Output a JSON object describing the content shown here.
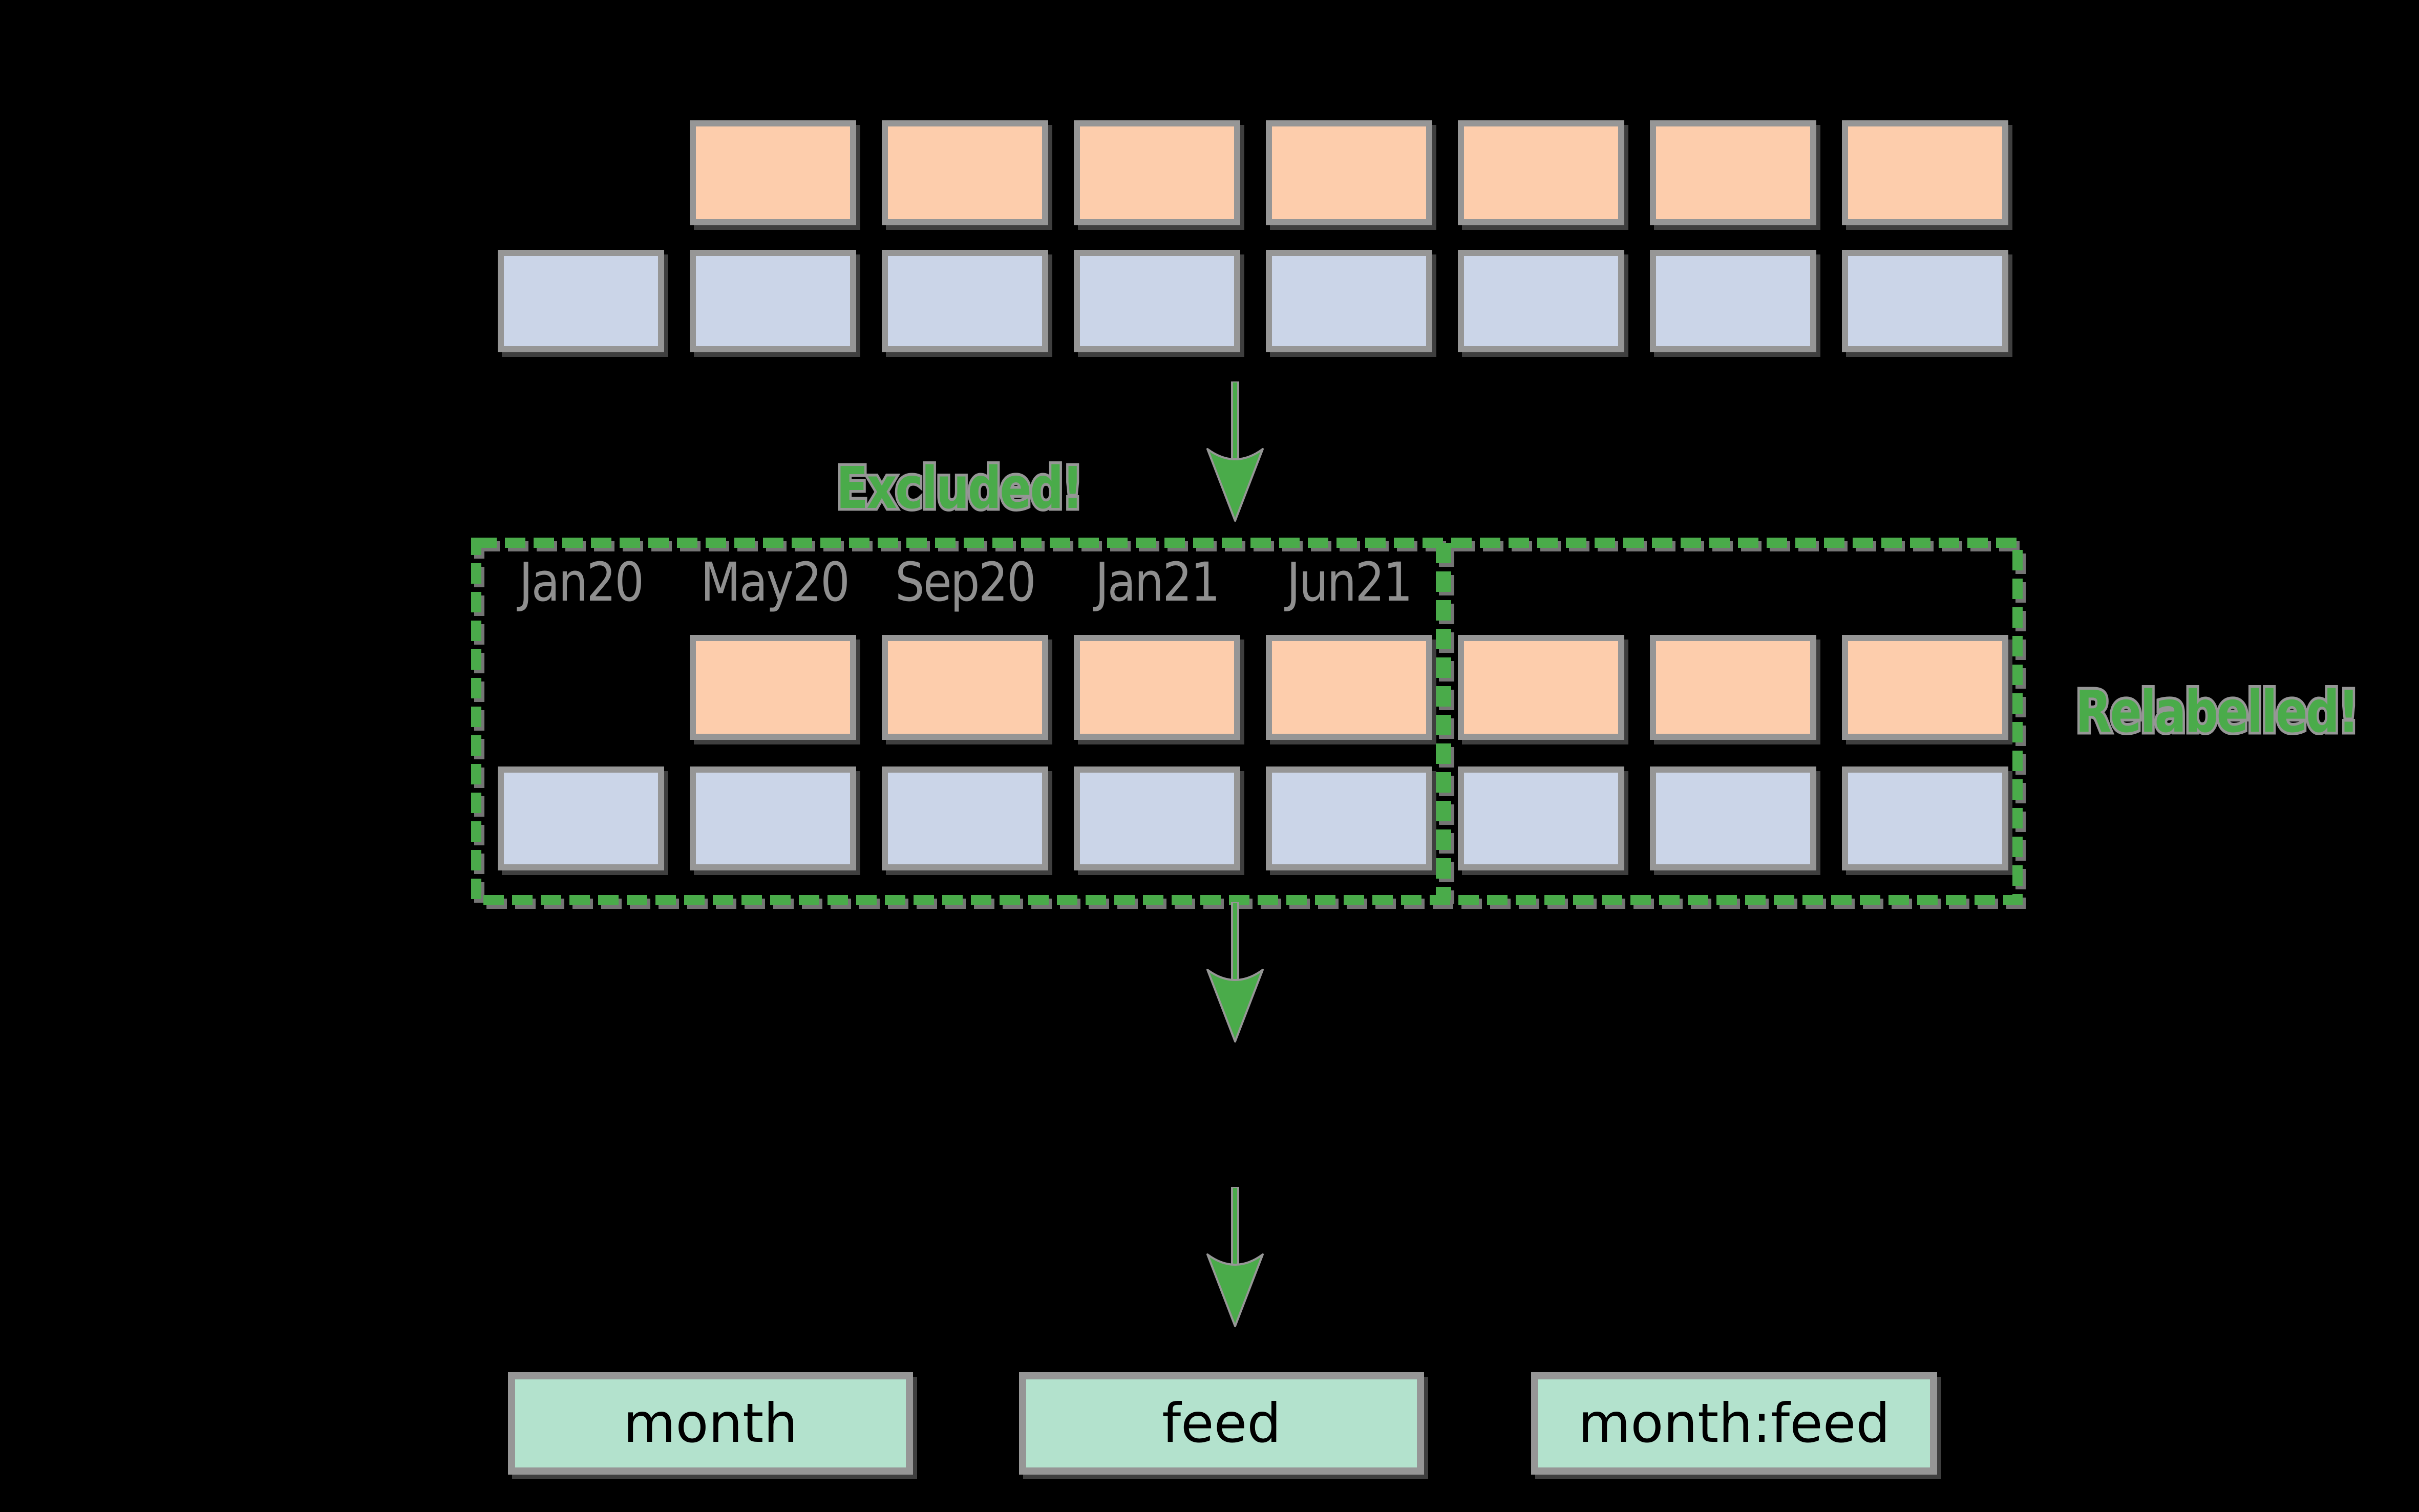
{
  "colors": {
    "background": "#000000",
    "peach_cell": "#fdcdac",
    "blue_cell": "#cbd5e8",
    "mint_box": "#b3e2cd",
    "annotation_green": "#4aab4a",
    "border_gray": "#969696",
    "tick_label_gray": "#8f8f8f"
  },
  "top_grid": {
    "peach_cells": 7,
    "blue_cells": 8
  },
  "timeline_box": {
    "month_labels": [
      "Jan20",
      "May20",
      "Sep20",
      "Jan21",
      "Jun21"
    ],
    "peach_cells": 7,
    "blue_cells": 8,
    "excluded_label": "Excluded!",
    "relabelled_label": "Relabelled!"
  },
  "arrows": {
    "count": 3,
    "direction": "down"
  },
  "output_boxes": [
    {
      "label": "month"
    },
    {
      "label": "feed"
    },
    {
      "label": "month:feed"
    }
  ]
}
